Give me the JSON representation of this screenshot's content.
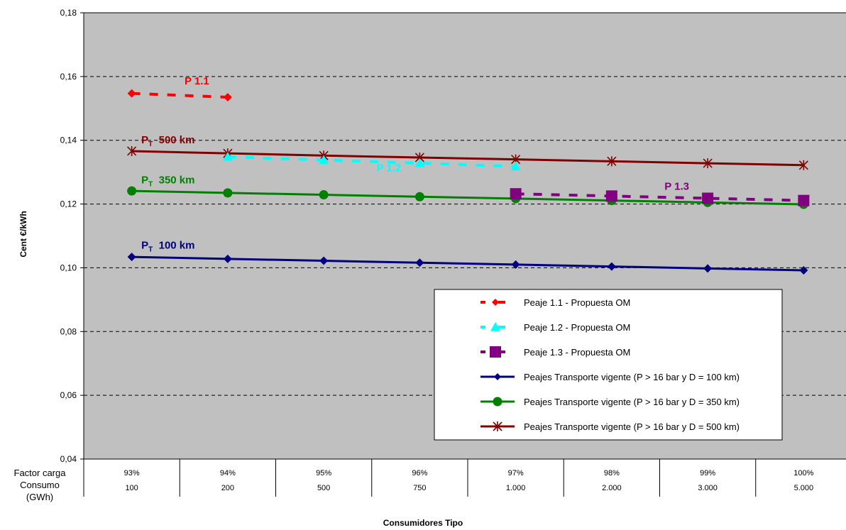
{
  "chart_data": {
    "type": "line",
    "title": "",
    "xlabel": "Consumidores Tipo",
    "ylabel": "Cent €/kWh",
    "ylim": [
      0.04,
      0.18
    ],
    "yticks": [
      "0,04",
      "0,06",
      "0,08",
      "0,10",
      "0,12",
      "0,14",
      "0,16",
      "0,18"
    ],
    "grid": "horizontal dashed",
    "legend_position": "bottom-right",
    "categories": [
      "93%",
      "94%",
      "95%",
      "96%",
      "97%",
      "98%",
      "99%",
      "100%"
    ],
    "category_rows": [
      {
        "label_line1": "Factor carga",
        "values": [
          "93%",
          "94%",
          "95%",
          "96%",
          "97%",
          "98%",
          "99%",
          "100%"
        ]
      },
      {
        "label_line1": "Consumo",
        "label_line2": "(GWh)",
        "values": [
          "100",
          "200",
          "500",
          "750",
          "1.000",
          "2.000",
          "3.000",
          "5.000"
        ]
      }
    ],
    "series": [
      {
        "name": "Peaje 1.1 - Propuesta OM",
        "color": "#ff0000",
        "style": "dashed",
        "marker": "diamond",
        "values": [
          0.1547,
          0.1535,
          null,
          null,
          null,
          null,
          null,
          null
        ]
      },
      {
        "name": "Peaje 1.2 - Propuesta OM",
        "color": "#00ffff",
        "style": "dashed",
        "marker": "triangle",
        "values": [
          null,
          0.1348,
          0.1338,
          0.1328,
          0.1318,
          null,
          null,
          null
        ]
      },
      {
        "name": "Peaje 1.3 - Propuesta OM",
        "color": "#800080",
        "style": "dashed",
        "marker": "square",
        "values": [
          null,
          null,
          null,
          null,
          0.1232,
          0.1225,
          0.1218,
          0.1211
        ]
      },
      {
        "name": "Peajes Transporte vigente (P > 16 bar y D = 100 km)",
        "color": "#000080",
        "style": "solid",
        "marker": "diamond",
        "values": [
          0.1034,
          0.1028,
          0.1022,
          0.1016,
          0.101,
          0.1004,
          0.0998,
          0.0992
        ]
      },
      {
        "name": "Peajes Transporte vigente (P > 16 bar y D = 350 km)",
        "color": "#008000",
        "style": "solid",
        "marker": "circle",
        "values": [
          0.1241,
          0.1235,
          0.1229,
          0.1223,
          0.1217,
          0.1211,
          0.1205,
          0.1199
        ]
      },
      {
        "name": "Peajes Transporte vigente (P > 16 bar y D = 500 km)",
        "color": "#800000",
        "style": "solid",
        "marker": "star",
        "values": [
          0.1366,
          0.1359,
          0.1352,
          0.1346,
          0.134,
          0.1334,
          0.1328,
          0.1322
        ]
      }
    ],
    "annotations": [
      {
        "text": "P 1.1",
        "color": "#ff0000",
        "category": 0.55,
        "y": 0.1575
      },
      {
        "text": "P 1.2",
        "color": "#00ffff",
        "category": 2.55,
        "y": 0.1303
      },
      {
        "text": "P 1.3",
        "color": "#800080",
        "category": 5.55,
        "y": 0.1245
      },
      {
        "text": "P",
        "subscript": "T",
        "suffix": "  500 km",
        "color": "#800000",
        "category": 0.1,
        "y": 0.139
      },
      {
        "text": "P",
        "subscript": "T",
        "suffix": "  350 km",
        "color": "#008000",
        "category": 0.1,
        "y": 0.1265
      },
      {
        "text": "P",
        "subscript": "T",
        "suffix": "  100 km",
        "color": "#000080",
        "category": 0.1,
        "y": 0.106
      }
    ]
  }
}
